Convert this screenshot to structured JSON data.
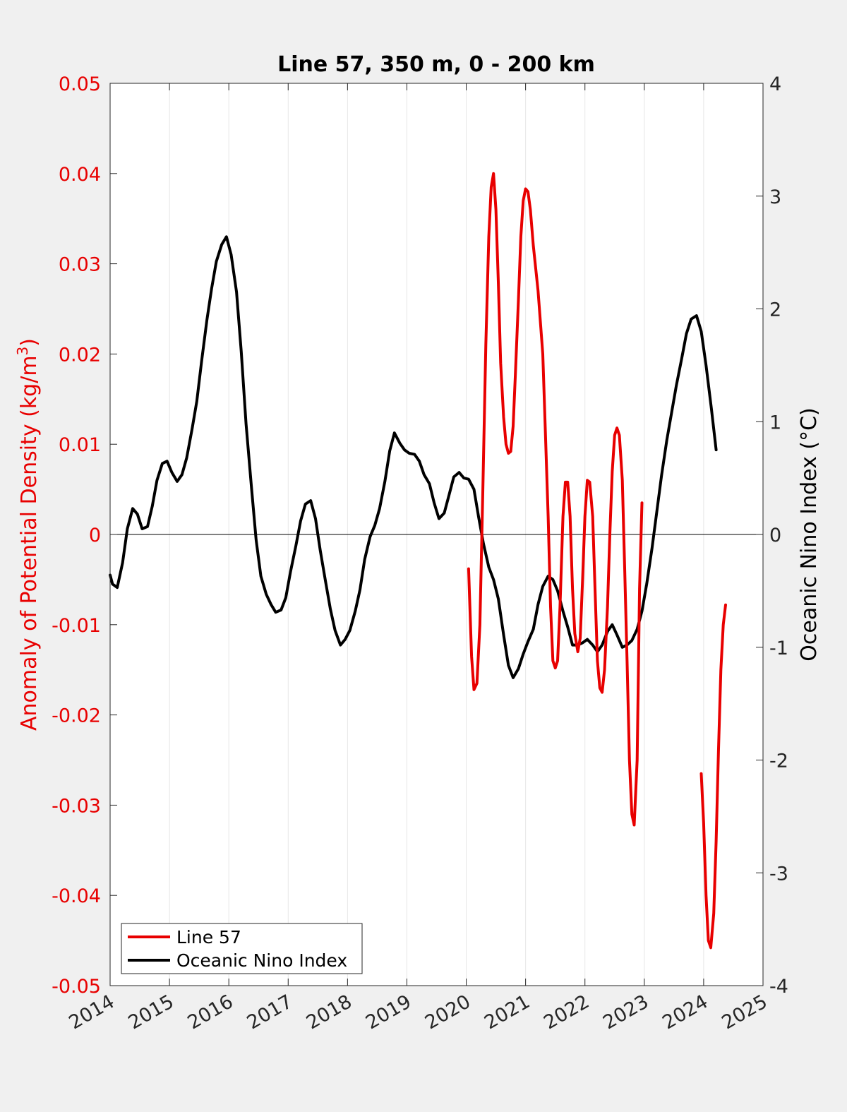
{
  "chart_data": {
    "type": "line",
    "title": "Line 57, 350 m, 0 - 200 km",
    "x_ticks": [
      "2014",
      "2015",
      "2016",
      "2017",
      "2018",
      "2019",
      "2020",
      "2021",
      "2022",
      "2023",
      "2024",
      "2025"
    ],
    "xlim": [
      2014,
      2025
    ],
    "left_axis": {
      "label": "Anomaly of Potential Density (kg/m3)",
      "label_main": "Anomaly of Potential Density (kg/m",
      "label_sup": "3",
      "label_end": ")",
      "ylim": [
        -0.05,
        0.05
      ],
      "ticks": [
        "-0.05",
        "-0.04",
        "-0.03",
        "-0.02",
        "-0.01",
        "0",
        "0.01",
        "0.02",
        "0.03",
        "0.04",
        "0.05"
      ],
      "color": "#e80000"
    },
    "right_axis": {
      "label": "Oceanic Nino Index (°C)",
      "ylim": [
        -4,
        4
      ],
      "ticks": [
        "-4",
        "-3",
        "-2",
        "-1",
        "0",
        "1",
        "2",
        "3",
        "4"
      ],
      "color": "#000000"
    },
    "grid": "vertical",
    "legend_position": "bottom-left",
    "series": [
      {
        "name": "Line 57",
        "axis": "left",
        "color": "#e80000",
        "segments": [
          [
            [
              2020.04,
              -0.0038
            ],
            [
              2020.09,
              -0.0135
            ],
            [
              2020.13,
              -0.0172
            ],
            [
              2020.18,
              -0.0165
            ],
            [
              2020.23,
              -0.01
            ],
            [
              2020.28,
              0.005
            ],
            [
              2020.33,
              0.021
            ],
            [
              2020.38,
              0.033
            ],
            [
              2020.42,
              0.0385
            ],
            [
              2020.46,
              0.04
            ],
            [
              2020.5,
              0.036
            ],
            [
              2020.54,
              0.028
            ],
            [
              2020.58,
              0.019
            ],
            [
              2020.63,
              0.013
            ],
            [
              2020.67,
              0.01
            ],
            [
              2020.71,
              0.009
            ],
            [
              2020.75,
              0.0092
            ],
            [
              2020.79,
              0.012
            ],
            [
              2020.83,
              0.018
            ],
            [
              2020.88,
              0.026
            ],
            [
              2020.92,
              0.033
            ],
            [
              2020.96,
              0.037
            ],
            [
              2021.0,
              0.0383
            ],
            [
              2021.04,
              0.038
            ],
            [
              2021.08,
              0.036
            ],
            [
              2021.13,
              0.032
            ],
            [
              2021.21,
              0.027
            ],
            [
              2021.29,
              0.02
            ],
            [
              2021.33,
              0.012
            ],
            [
              2021.38,
              0.002
            ],
            [
              2021.42,
              -0.008
            ],
            [
              2021.46,
              -0.014
            ],
            [
              2021.5,
              -0.0148
            ],
            [
              2021.54,
              -0.014
            ],
            [
              2021.58,
              -0.008
            ],
            [
              2021.63,
              0.002
            ],
            [
              2021.67,
              0.0058
            ],
            [
              2021.71,
              0.0058
            ],
            [
              2021.75,
              0.002
            ],
            [
              2021.79,
              -0.006
            ],
            [
              2021.83,
              -0.011
            ],
            [
              2021.88,
              -0.013
            ],
            [
              2021.92,
              -0.0115
            ],
            [
              2021.96,
              -0.005
            ],
            [
              2022.0,
              0.002
            ],
            [
              2022.04,
              0.006
            ],
            [
              2022.08,
              0.0058
            ],
            [
              2022.13,
              0.002
            ],
            [
              2022.17,
              -0.006
            ],
            [
              2022.21,
              -0.014
            ],
            [
              2022.25,
              -0.017
            ],
            [
              2022.29,
              -0.0175
            ],
            [
              2022.33,
              -0.015
            ],
            [
              2022.38,
              -0.008
            ],
            [
              2022.42,
              0.0
            ],
            [
              2022.46,
              0.007
            ],
            [
              2022.5,
              0.011
            ],
            [
              2022.54,
              0.0118
            ],
            [
              2022.58,
              0.011
            ],
            [
              2022.63,
              0.006
            ],
            [
              2022.67,
              -0.004
            ],
            [
              2022.71,
              -0.014
            ],
            [
              2022.75,
              -0.025
            ],
            [
              2022.79,
              -0.031
            ],
            [
              2022.83,
              -0.0322
            ],
            [
              2022.88,
              -0.025
            ],
            [
              2022.92,
              -0.006
            ],
            [
              2022.96,
              0.0035
            ]
          ],
          [
            [
              2023.96,
              -0.0265
            ],
            [
              2024.0,
              -0.032
            ],
            [
              2024.04,
              -0.04
            ],
            [
              2024.08,
              -0.045
            ],
            [
              2024.12,
              -0.0458
            ],
            [
              2024.17,
              -0.042
            ],
            [
              2024.21,
              -0.034
            ],
            [
              2024.25,
              -0.024
            ],
            [
              2024.29,
              -0.015
            ],
            [
              2024.33,
              -0.01
            ],
            [
              2024.37,
              -0.0078
            ]
          ]
        ]
      },
      {
        "name": "Oceanic Nino Index",
        "axis": "right",
        "color": "#000000",
        "segments": [
          [
            [
              2014.0,
              -0.36
            ],
            [
              2014.04,
              -0.44
            ],
            [
              2014.12,
              -0.47
            ],
            [
              2014.21,
              -0.25
            ],
            [
              2014.29,
              0.05
            ],
            [
              2014.38,
              0.23
            ],
            [
              2014.46,
              0.18
            ],
            [
              2014.54,
              0.05
            ],
            [
              2014.63,
              0.07
            ],
            [
              2014.71,
              0.25
            ],
            [
              2014.79,
              0.48
            ],
            [
              2014.88,
              0.63
            ],
            [
              2014.96,
              0.65
            ],
            [
              2015.04,
              0.55
            ],
            [
              2015.13,
              0.47
            ],
            [
              2015.21,
              0.53
            ],
            [
              2015.29,
              0.68
            ],
            [
              2015.38,
              0.93
            ],
            [
              2015.46,
              1.18
            ],
            [
              2015.54,
              1.53
            ],
            [
              2015.63,
              1.9
            ],
            [
              2015.71,
              2.18
            ],
            [
              2015.79,
              2.42
            ],
            [
              2015.88,
              2.57
            ],
            [
              2015.96,
              2.64
            ],
            [
              2016.04,
              2.48
            ],
            [
              2016.13,
              2.15
            ],
            [
              2016.21,
              1.62
            ],
            [
              2016.29,
              0.98
            ],
            [
              2016.38,
              0.43
            ],
            [
              2016.46,
              -0.05
            ],
            [
              2016.54,
              -0.37
            ],
            [
              2016.63,
              -0.53
            ],
            [
              2016.71,
              -0.62
            ],
            [
              2016.79,
              -0.69
            ],
            [
              2016.88,
              -0.67
            ],
            [
              2016.96,
              -0.56
            ],
            [
              2017.04,
              -0.33
            ],
            [
              2017.13,
              -0.1
            ],
            [
              2017.21,
              0.12
            ],
            [
              2017.29,
              0.27
            ],
            [
              2017.38,
              0.3
            ],
            [
              2017.46,
              0.14
            ],
            [
              2017.54,
              -0.14
            ],
            [
              2017.63,
              -0.42
            ],
            [
              2017.71,
              -0.66
            ],
            [
              2017.79,
              -0.85
            ],
            [
              2017.88,
              -0.98
            ],
            [
              2017.96,
              -0.93
            ],
            [
              2018.04,
              -0.85
            ],
            [
              2018.13,
              -0.68
            ],
            [
              2018.21,
              -0.49
            ],
            [
              2018.29,
              -0.22
            ],
            [
              2018.38,
              -0.02
            ],
            [
              2018.46,
              0.08
            ],
            [
              2018.54,
              0.23
            ],
            [
              2018.63,
              0.47
            ],
            [
              2018.71,
              0.74
            ],
            [
              2018.79,
              0.9
            ],
            [
              2018.88,
              0.81
            ],
            [
              2018.96,
              0.75
            ],
            [
              2019.04,
              0.72
            ],
            [
              2019.13,
              0.71
            ],
            [
              2019.21,
              0.65
            ],
            [
              2019.29,
              0.53
            ],
            [
              2019.38,
              0.45
            ],
            [
              2019.46,
              0.28
            ],
            [
              2019.54,
              0.14
            ],
            [
              2019.63,
              0.19
            ],
            [
              2019.71,
              0.35
            ],
            [
              2019.79,
              0.51
            ],
            [
              2019.88,
              0.55
            ],
            [
              2019.96,
              0.5
            ],
            [
              2020.04,
              0.49
            ],
            [
              2020.13,
              0.4
            ],
            [
              2020.21,
              0.15
            ],
            [
              2020.29,
              -0.08
            ],
            [
              2020.38,
              -0.29
            ],
            [
              2020.46,
              -0.4
            ],
            [
              2020.54,
              -0.57
            ],
            [
              2020.63,
              -0.89
            ],
            [
              2020.71,
              -1.16
            ],
            [
              2020.79,
              -1.27
            ],
            [
              2020.88,
              -1.19
            ],
            [
              2020.96,
              -1.06
            ],
            [
              2021.04,
              -0.95
            ],
            [
              2021.13,
              -0.84
            ],
            [
              2021.21,
              -0.62
            ],
            [
              2021.29,
              -0.46
            ],
            [
              2021.38,
              -0.37
            ],
            [
              2021.46,
              -0.4
            ],
            [
              2021.54,
              -0.5
            ],
            [
              2021.63,
              -0.68
            ],
            [
              2021.71,
              -0.82
            ],
            [
              2021.79,
              -0.98
            ],
            [
              2021.88,
              -0.98
            ],
            [
              2021.96,
              -0.96
            ],
            [
              2022.04,
              -0.93
            ],
            [
              2022.13,
              -0.98
            ],
            [
              2022.21,
              -1.04
            ],
            [
              2022.29,
              -0.98
            ],
            [
              2022.38,
              -0.86
            ],
            [
              2022.46,
              -0.8
            ],
            [
              2022.54,
              -0.89
            ],
            [
              2022.63,
              -1.0
            ],
            [
              2022.71,
              -0.98
            ],
            [
              2022.79,
              -0.94
            ],
            [
              2022.88,
              -0.84
            ],
            [
              2022.96,
              -0.68
            ],
            [
              2023.04,
              -0.44
            ],
            [
              2023.13,
              -0.12
            ],
            [
              2023.21,
              0.2
            ],
            [
              2023.29,
              0.52
            ],
            [
              2023.38,
              0.84
            ],
            [
              2023.46,
              1.08
            ],
            [
              2023.54,
              1.32
            ],
            [
              2023.63,
              1.56
            ],
            [
              2023.71,
              1.78
            ],
            [
              2023.79,
              1.91
            ],
            [
              2023.88,
              1.94
            ],
            [
              2023.96,
              1.8
            ],
            [
              2024.04,
              1.5
            ],
            [
              2024.13,
              1.12
            ],
            [
              2024.21,
              0.75
            ]
          ]
        ]
      }
    ]
  }
}
